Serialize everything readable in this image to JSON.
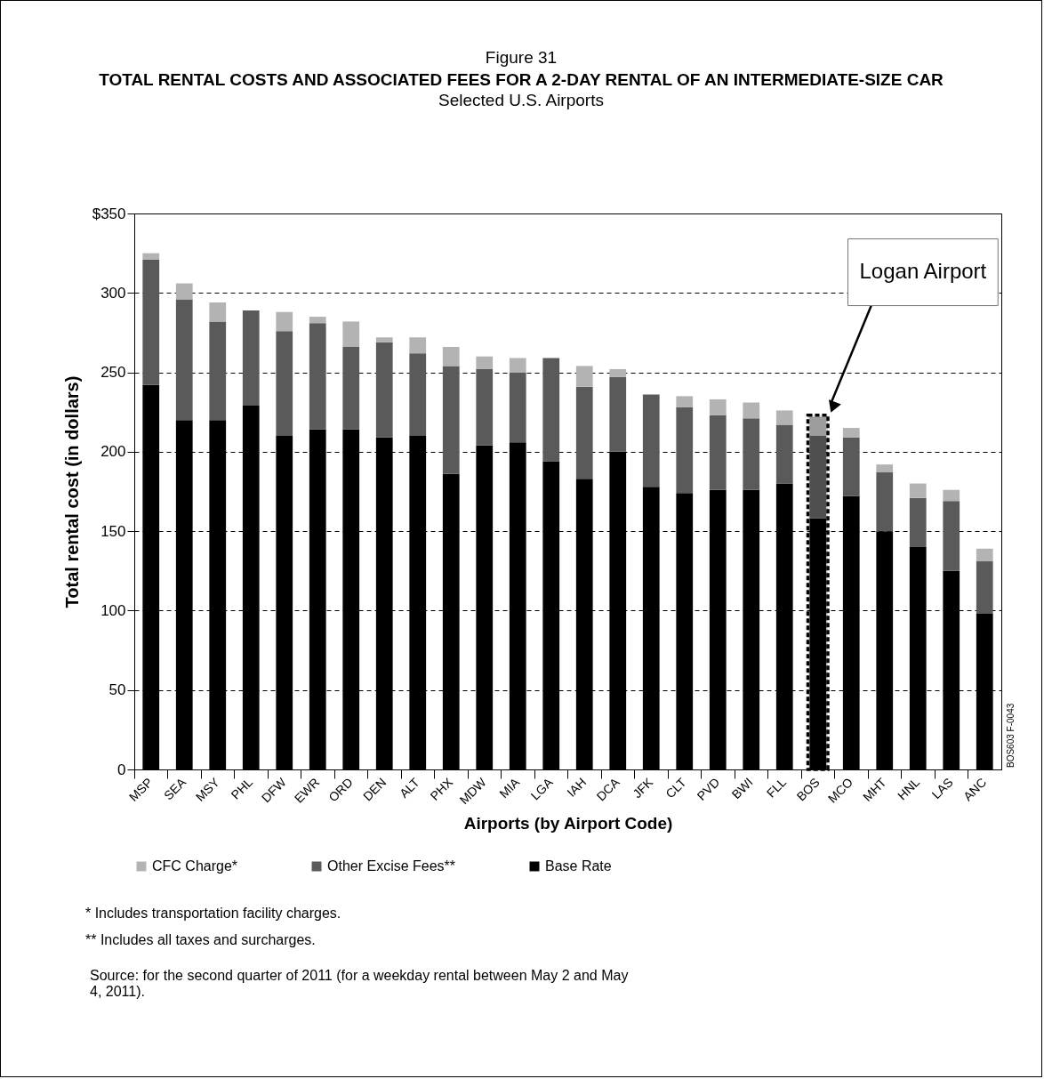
{
  "chart_data": {
    "type": "bar",
    "stacked": true,
    "title": "TOTAL RENTAL COSTS AND ASSOCIATED FEES FOR A 2-DAY RENTAL OF AN INTERMEDIATE-SIZE CAR",
    "subtitle": "Selected U.S. Airports",
    "xlabel": "Airports (by Airport Code)",
    "ylabel": "Total rental cost (in dollars)",
    "categories": [
      "MSP",
      "SEA",
      "MSY",
      "PHL",
      "DFW",
      "EWR",
      "ORD",
      "DEN",
      "ALT",
      "PHX",
      "MDW",
      "MIA",
      "LGA",
      "IAH",
      "DCA",
      "JFK",
      "CLT",
      "PVD",
      "BWI",
      "FLL",
      "BOS",
      "MCO",
      "MHT",
      "HNL",
      "LAS",
      "ANC"
    ],
    "series": [
      {
        "name": "Base Rate",
        "color": "#000000",
        "values": [
          242,
          220,
          220,
          229,
          210,
          214,
          214,
          209,
          210,
          186,
          204,
          206,
          194,
          183,
          200,
          178,
          174,
          176,
          176,
          180,
          158,
          172,
          150,
          140,
          125,
          98
        ]
      },
      {
        "name": "Other Excise Fees**",
        "color": "#5a5a5a",
        "values": [
          79,
          76,
          62,
          60,
          66,
          67,
          52,
          60,
          52,
          68,
          48,
          44,
          65,
          58,
          47,
          58,
          54,
          47,
          45,
          37,
          52,
          37,
          37,
          31,
          44,
          33
        ]
      },
      {
        "name": "CFC Charge*",
        "color": "#b3b3b3",
        "values": [
          4,
          10,
          12,
          null,
          12,
          4,
          16,
          3,
          10,
          12,
          8,
          9,
          null,
          13,
          5,
          null,
          7,
          10,
          10,
          9,
          12,
          6,
          5,
          9,
          7,
          8
        ]
      }
    ],
    "ylim": [
      0,
      350
    ],
    "yticks": [
      0,
      50,
      100,
      150,
      200,
      250,
      300,
      {
        "value": 350,
        "label": "$350"
      }
    ],
    "grid": "y",
    "legend": "bottom",
    "bands": [
      {
        "axis": "x",
        "from": "BOS",
        "to": "BOS",
        "color": "#000000"
      }
    ],
    "annotations": [
      "Figure 31",
      "Logan Airport",
      "* Includes transportation facility charges.",
      "** Includes all taxes and surcharges.",
      "Source: for the second quarter of 2011 (for a weekday rental between May 2 and May 4, 2011).",
      "BOS603 F-0043"
    ]
  }
}
